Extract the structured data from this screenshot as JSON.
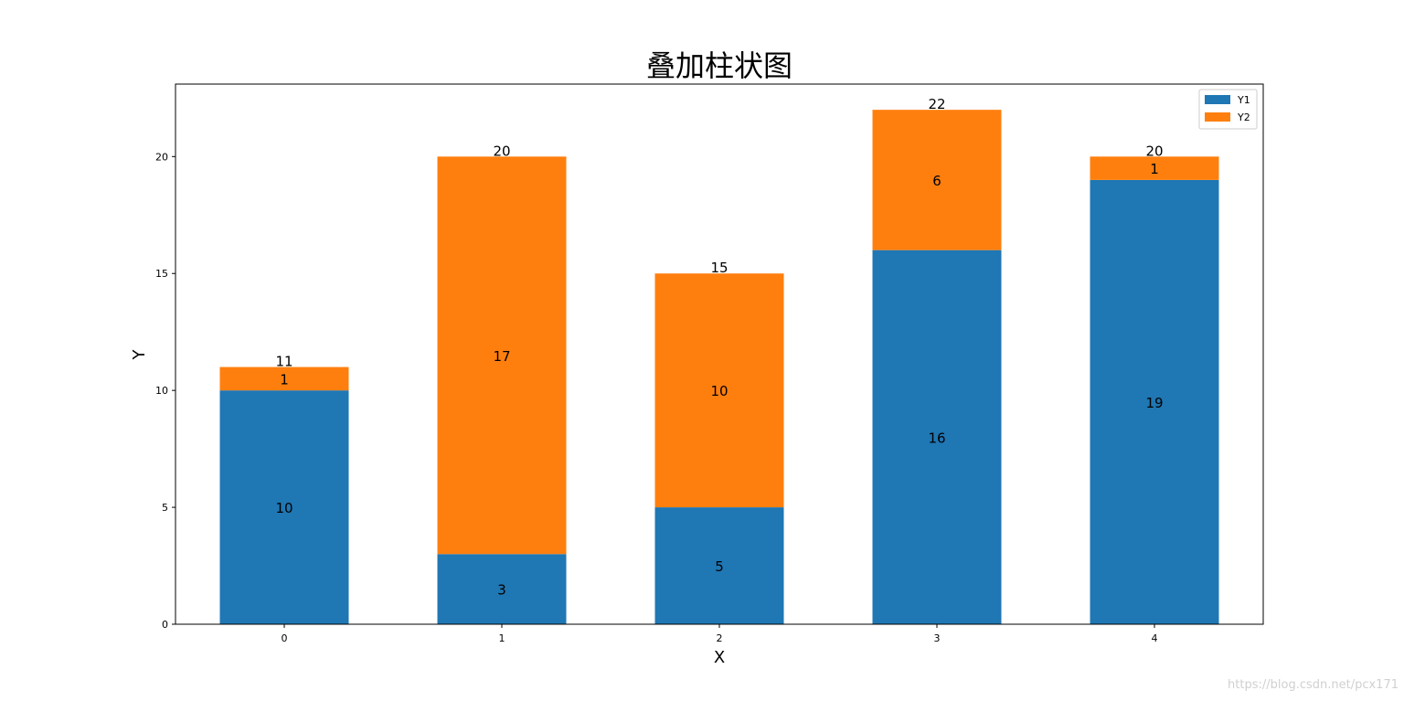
{
  "chart_data": {
    "type": "bar",
    "stacked": true,
    "title": "叠加柱状图",
    "xlabel": "X",
    "ylabel": "Y",
    "categories": [
      "0",
      "1",
      "2",
      "3",
      "4"
    ],
    "series": [
      {
        "name": "Y1",
        "values": [
          10,
          3,
          5,
          16,
          19
        ],
        "color": "#1f77b4"
      },
      {
        "name": "Y2",
        "values": [
          1,
          17,
          10,
          6,
          1
        ],
        "color": "#ff7f0e"
      }
    ],
    "totals": [
      11,
      20,
      15,
      22,
      20
    ],
    "ylim": [
      0,
      23.1
    ],
    "yticks": [
      0,
      5,
      10,
      15,
      20
    ],
    "grid": false,
    "legend_position": "top-right"
  },
  "watermark": "https://blog.csdn.net/pcx171"
}
